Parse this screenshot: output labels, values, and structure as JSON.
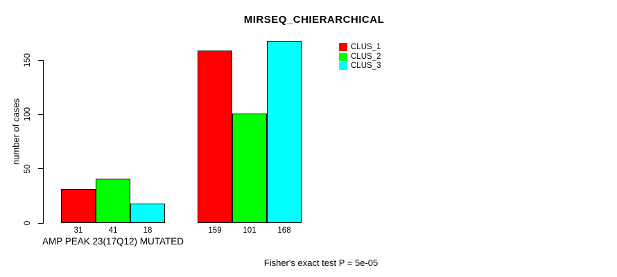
{
  "chart_data": {
    "type": "bar",
    "title": "MIRSEQ_CHIERARCHICAL",
    "ylabel": "number of cases",
    "xlabel": "",
    "ylim": [
      0,
      150
    ],
    "yticks": [
      0,
      50,
      100,
      150
    ],
    "grid": false,
    "legend_position": "top-right",
    "categories": [
      "AMP PEAK 23(17Q12) MUTATED",
      ""
    ],
    "series": [
      {
        "name": "CLUS_1",
        "color": "#ff0000",
        "values": [
          31,
          159
        ]
      },
      {
        "name": "CLUS_2",
        "color": "#00ff00",
        "values": [
          41,
          101
        ]
      },
      {
        "name": "CLUS_3",
        "color": "#00ffff",
        "values": [
          18,
          168
        ]
      }
    ],
    "bar_value_labels": [
      [
        31,
        41,
        18
      ],
      [
        159,
        101,
        168
      ]
    ],
    "footnote": "Fisher's exact test P = 5e-05"
  },
  "colors": {
    "background": "#ffffff",
    "axis": "#000000",
    "clus_1": "#ff0000",
    "clus_2": "#00ff00",
    "clus_3": "#00ffff"
  }
}
